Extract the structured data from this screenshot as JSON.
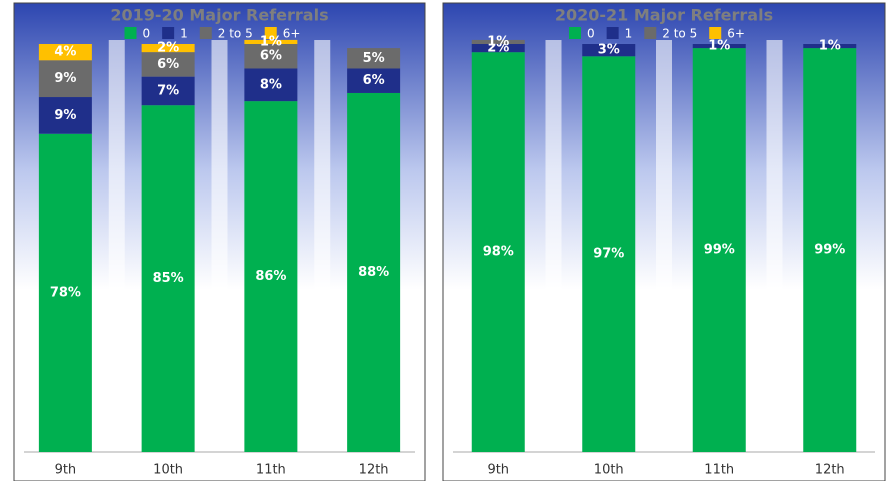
{
  "chart_data": [
    {
      "type": "stacked-bar",
      "title": "2019-20 Major Referrals",
      "categories": [
        "9th",
        "10th",
        "11th",
        "12th"
      ],
      "ylim": [
        0,
        100
      ],
      "series": [
        {
          "name": "0",
          "color": "#00b050",
          "values": [
            78,
            85,
            86,
            88
          ],
          "value_labels": [
            "78%",
            "85%",
            "86%",
            "88%"
          ]
        },
        {
          "name": "1",
          "color": "#1f2f8a",
          "values": [
            9,
            7,
            8,
            6
          ],
          "value_labels": [
            "9%",
            "7%",
            "8%",
            "6%"
          ]
        },
        {
          "name": "2 to 5",
          "color": "#6b6b6b",
          "values": [
            9,
            6,
            6,
            5
          ],
          "value_labels": [
            "9%",
            "6%",
            "6%",
            "5%"
          ]
        },
        {
          "name": "6+",
          "color": "#ffc000",
          "values": [
            4,
            2,
            1,
            null
          ],
          "value_labels": [
            "4%",
            "2%",
            "1%",
            null
          ]
        }
      ]
    },
    {
      "type": "stacked-bar",
      "title": "2020-21 Major Referrals",
      "categories": [
        "9th",
        "10th",
        "11th",
        "12th"
      ],
      "ylim": [
        0,
        100
      ],
      "series": [
        {
          "name": "0",
          "color": "#00b050",
          "values": [
            98,
            97,
            99,
            99
          ],
          "value_labels": [
            "98%",
            "97%",
            "99%",
            "99%"
          ]
        },
        {
          "name": "1",
          "color": "#1f2f8a",
          "values": [
            2,
            3,
            1,
            1
          ],
          "value_labels": [
            "2%",
            "3%",
            "1%",
            "1%"
          ]
        },
        {
          "name": "2 to 5",
          "color": "#6b6b6b",
          "values": [
            1,
            null,
            null,
            null
          ],
          "value_labels": [
            "1%",
            null,
            null,
            null
          ]
        },
        {
          "name": "6+",
          "color": "#ffc000",
          "values": [
            null,
            null,
            null,
            null
          ],
          "value_labels": [
            null,
            null,
            null,
            null
          ]
        }
      ]
    }
  ]
}
